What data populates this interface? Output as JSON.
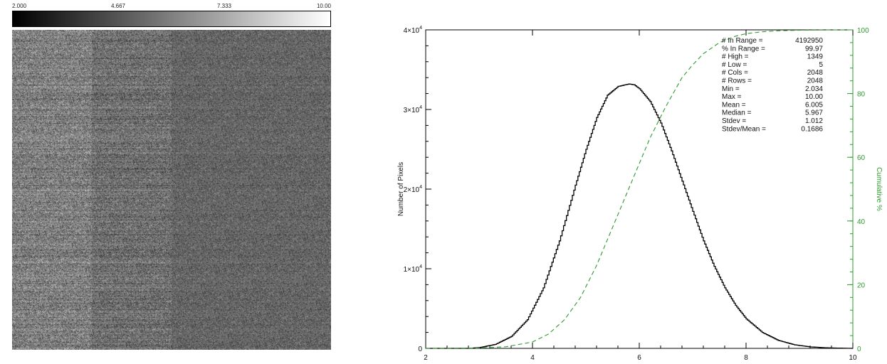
{
  "colorbar": {
    "tick_labels": [
      "2.000",
      "4.667",
      "7.333",
      "10.00"
    ],
    "range": [
      2.0,
      10.0
    ]
  },
  "image": {
    "description_free": true
  },
  "chart_data": {
    "type": "line",
    "title": "",
    "xlabel": "",
    "ylabel": "Number of Pixels",
    "y2label": "Cumulative %",
    "xlim": [
      2,
      10
    ],
    "ylim": [
      0,
      40000
    ],
    "y2lim": [
      0,
      100
    ],
    "x_ticks": [
      "2",
      "4",
      "6",
      "8",
      "10"
    ],
    "y_ticks": [
      {
        "mant": "0",
        "exp": ""
      },
      {
        "mant": "1×10",
        "exp": "4"
      },
      {
        "mant": "2×10",
        "exp": "4"
      },
      {
        "mant": "3×10",
        "exp": "4"
      },
      {
        "mant": "4×10",
        "exp": "4"
      }
    ],
    "y2_ticks": [
      "0",
      "20",
      "40",
      "60",
      "80",
      "100"
    ],
    "grid": false,
    "series": [
      {
        "color": "#000000",
        "style": "solid",
        "axis": "left",
        "x": [
          2.0,
          2.8,
          3.0,
          3.3,
          3.6,
          3.9,
          4.2,
          4.5,
          4.8,
          5.0,
          5.2,
          5.4,
          5.6,
          5.8,
          5.9,
          6.0,
          6.2,
          6.4,
          6.6,
          6.8,
          7.0,
          7.2,
          7.4,
          7.6,
          7.8,
          8.0,
          8.3,
          8.6,
          8.9,
          9.2,
          9.5,
          9.8,
          10.0
        ],
        "y": [
          0,
          0,
          100,
          500,
          1500,
          3600,
          7600,
          13500,
          20500,
          25000,
          29000,
          31800,
          32900,
          33200,
          33100,
          32600,
          31000,
          28300,
          24800,
          21000,
          17200,
          13500,
          10300,
          7600,
          5400,
          3700,
          2000,
          1000,
          450,
          180,
          70,
          20,
          0
        ]
      },
      {
        "color": "#2e9a2e",
        "style": "dashed",
        "axis": "right",
        "x": [
          2.0,
          3.0,
          3.5,
          4.0,
          4.3,
          4.6,
          4.9,
          5.2,
          5.5,
          5.8,
          6.0,
          6.2,
          6.5,
          6.8,
          7.0,
          7.2,
          7.5,
          7.8,
          8.0,
          8.3,
          8.6,
          8.9,
          9.2,
          9.5,
          10.0
        ],
        "y": [
          0,
          0.1,
          0.5,
          2,
          4.5,
          9,
          16,
          26,
          38,
          50,
          58,
          66,
          76,
          85,
          89,
          92.5,
          96,
          98,
          98.8,
          99.4,
          99.7,
          99.85,
          99.93,
          99.97,
          100
        ]
      }
    ],
    "annotations": [
      {
        "label": "# In Range",
        "value": "4192950"
      },
      {
        "label": "% In Range",
        "value": "99.97"
      },
      {
        "label": "# High",
        "value": "1349"
      },
      {
        "label": "# Low",
        "value": "5"
      },
      {
        "label": "# Cols",
        "value": "2048"
      },
      {
        "label": "# Rows",
        "value": "2048"
      },
      {
        "label": "Min",
        "value": "2.034"
      },
      {
        "label": "Max",
        "value": "10.00"
      },
      {
        "label": "Mean",
        "value": "6.005"
      },
      {
        "label": "Median",
        "value": "5.967"
      },
      {
        "label": "Stdev",
        "value": "1.012"
      },
      {
        "label": "Stdev/Mean",
        "value": "0.1686"
      }
    ]
  }
}
